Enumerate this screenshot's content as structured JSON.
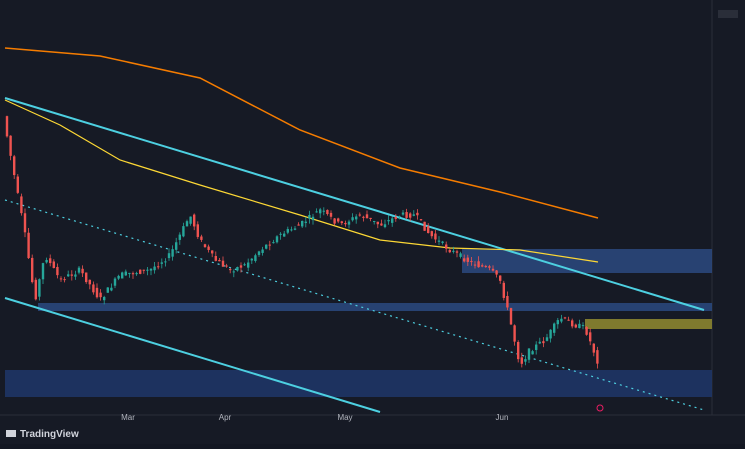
{
  "brand": "TradingView",
  "time_axis": {
    "labels": [
      "Mar",
      "Apr",
      "May",
      "Jun"
    ]
  }
}
